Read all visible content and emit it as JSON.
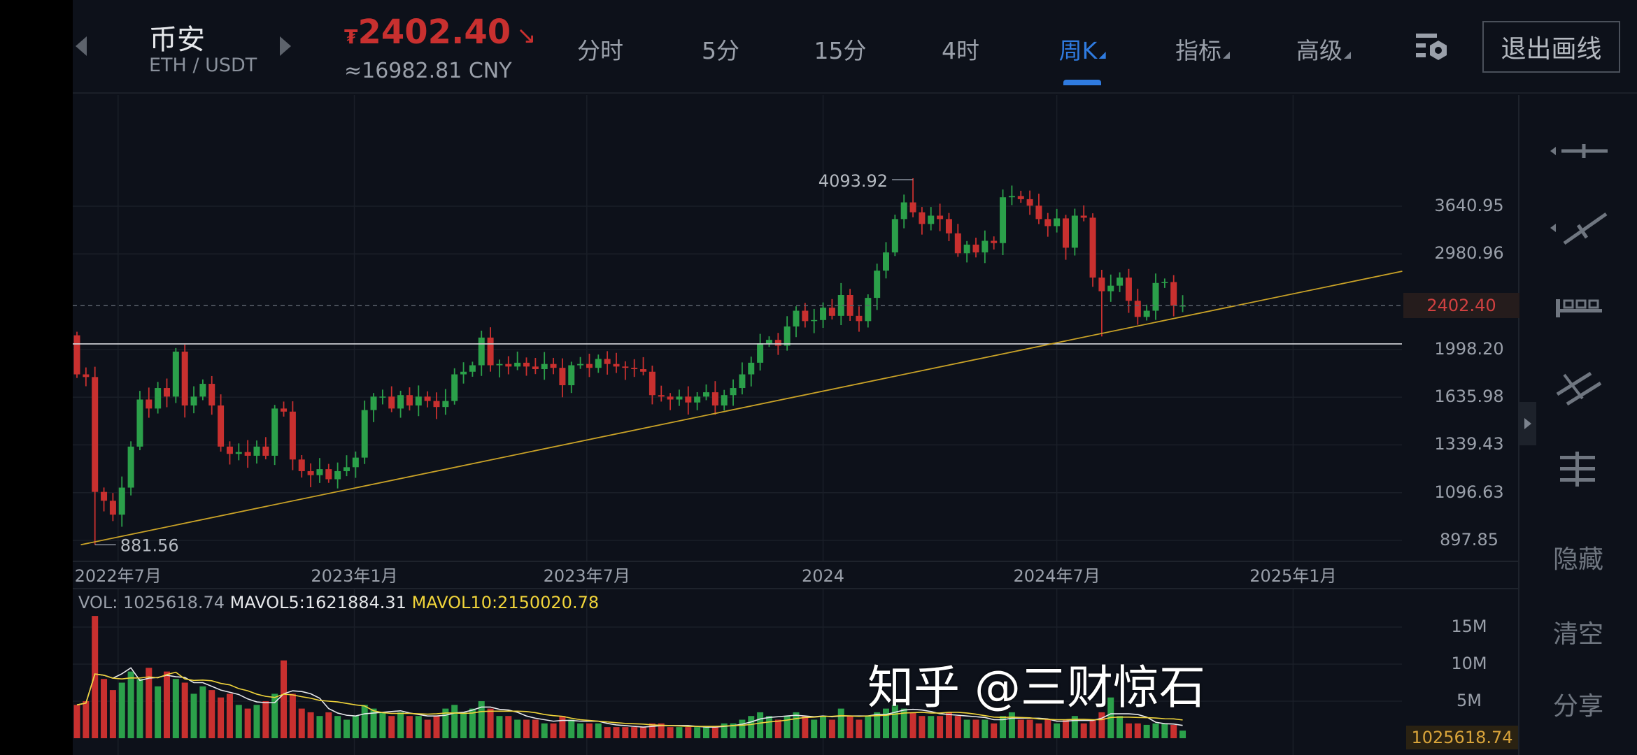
{
  "header": {
    "exchange": "币安",
    "pair": "ETH / USDT",
    "price_symbol": "₮",
    "price": "2402.40",
    "price_cny": "≈16982.81 CNY",
    "tabs": [
      {
        "label": "分时",
        "active": false
      },
      {
        "label": "5分",
        "active": false
      },
      {
        "label": "15分",
        "active": false
      },
      {
        "label": "4时",
        "active": false
      },
      {
        "label": "周K",
        "active": true,
        "dropdown": true
      },
      {
        "label": "指标",
        "active": false,
        "dropdown": true
      },
      {
        "label": "高级",
        "active": false,
        "dropdown": true
      }
    ],
    "settings_icon": "chart-settings-icon",
    "exit_drawing": "退出画线"
  },
  "right_toolbar": {
    "icons": [
      "horizontal-line-tool-icon",
      "trend-line-tool-icon",
      "measure-tool-icon",
      "parallel-channel-tool-icon",
      "price-range-tool-icon"
    ],
    "hide": "隐藏",
    "clear": "清空",
    "share": "分享"
  },
  "colors": {
    "up": "#2ba04a",
    "down": "#c8302f",
    "trendline": "#c9a227",
    "accent": "#2f7be0",
    "background": "#0d111a"
  },
  "watermark": "知乎 @三财惊石",
  "chart_data": {
    "type": "candlestick",
    "interval": "weekly",
    "start_date": "2022-05-30",
    "y_scale": "log",
    "ylim": [
      860,
      4200
    ],
    "price_ticks": [
      "3640.95",
      "2980.96",
      "1998.20",
      "1635.98",
      "1339.43",
      "1096.63",
      "897.85"
    ],
    "current_price": "2402.40",
    "date_ticks": [
      {
        "label": "2022年7月",
        "date": "2022-07-01"
      },
      {
        "label": "2023年1月",
        "date": "2023-01-01"
      },
      {
        "label": "2023年7月",
        "date": "2023-07-01"
      },
      {
        "label": "2024",
        "date": "2024-01-01"
      },
      {
        "label": "2024年7月",
        "date": "2024-07-01"
      },
      {
        "label": "2025年1月",
        "date": "2025-01-01"
      }
    ],
    "annotations": {
      "high": "4093.92",
      "low": "881.56"
    },
    "first_open": 2120,
    "closes": [
      1800,
      1780,
      1100,
      1060,
      1000,
      1120,
      1330,
      1620,
      1560,
      1700,
      1640,
      1980,
      1580,
      1640,
      1730,
      1580,
      1330,
      1290,
      1300,
      1280,
      1330,
      1280,
      1560,
      1540,
      1260,
      1200,
      1180,
      1210,
      1160,
      1200,
      1220,
      1270,
      1550,
      1640,
      1640,
      1560,
      1650,
      1580,
      1640,
      1610,
      1570,
      1610,
      1800,
      1820,
      1870,
      2100,
      1870,
      1880,
      1860,
      1890,
      1860,
      1840,
      1880,
      1850,
      1720,
      1870,
      1880,
      1850,
      1920,
      1880,
      1860,
      1850,
      1840,
      1820,
      1650,
      1640,
      1620,
      1640,
      1600,
      1640,
      1670,
      1580,
      1650,
      1700,
      1800,
      1890,
      2050,
      2080,
      2030,
      2200,
      2350,
      2250,
      2260,
      2380,
      2300,
      2510,
      2300,
      2250,
      2480,
      2780,
      3000,
      3450,
      3700,
      3550,
      3380,
      3500,
      3450,
      3250,
      2990,
      3100,
      3000,
      3150,
      3120,
      3780,
      3800,
      3750,
      3650,
      3450,
      3350,
      3460,
      3060,
      3500,
      3470,
      2700,
      2550,
      2610,
      2700,
      2450,
      2290,
      2350,
      2640,
      2650,
      2400,
      2402.4
    ],
    "volume_unit": "M",
    "volume_ticks": [
      "15M",
      "10M",
      "5M"
    ],
    "volumes": [
      4.5,
      5,
      16.5,
      8,
      6.5,
      7.5,
      9,
      8,
      9.5,
      7,
      9,
      8,
      7.5,
      6,
      7,
      6.5,
      5.5,
      6,
      4.5,
      4,
      4.5,
      5,
      6,
      10.5,
      6,
      4,
      3.5,
      3,
      3.5,
      3,
      2.5,
      3,
      4.5,
      4,
      3.5,
      3,
      3.5,
      3,
      3,
      2.5,
      3,
      4,
      4.5,
      3.5,
      4,
      5,
      4,
      3,
      3,
      2.5,
      2.5,
      2.5,
      2,
      2,
      3,
      2.5,
      2,
      2,
      2,
      1.5,
      1.5,
      1.5,
      1.5,
      1.5,
      2,
      2,
      1.5,
      1.5,
      1.5,
      1.5,
      1.5,
      1.5,
      2,
      2,
      2.5,
      3,
      3.5,
      3,
      2.5,
      3,
      3.5,
      3,
      2.5,
      3,
      2.5,
      4,
      3,
      2.5,
      3,
      3.5,
      4,
      4.5,
      4,
      3.5,
      3,
      3,
      3,
      3.5,
      3,
      2.5,
      2.5,
      2.5,
      2,
      3,
      3.5,
      2.5,
      2.5,
      2,
      2.5,
      2,
      2.5,
      3,
      2,
      2.5,
      3.5,
      5.5,
      3,
      2,
      2,
      1.8,
      2,
      2,
      1.8,
      1.03
    ],
    "volume_legend": {
      "vol": "VOL: 1025618.74",
      "mavol5": "MAVOL5:1621884.31",
      "mavol10": "MAVOL10:2150020.78"
    },
    "current_volume": "1025618.74",
    "drawings": {
      "trendline": {
        "start": {
          "date": "2022-06-02",
          "price": 881.56
        },
        "end": {
          "date": "2025-03-27",
          "price": 2773
        }
      },
      "horizontal_line": {
        "price": 2045
      }
    }
  }
}
